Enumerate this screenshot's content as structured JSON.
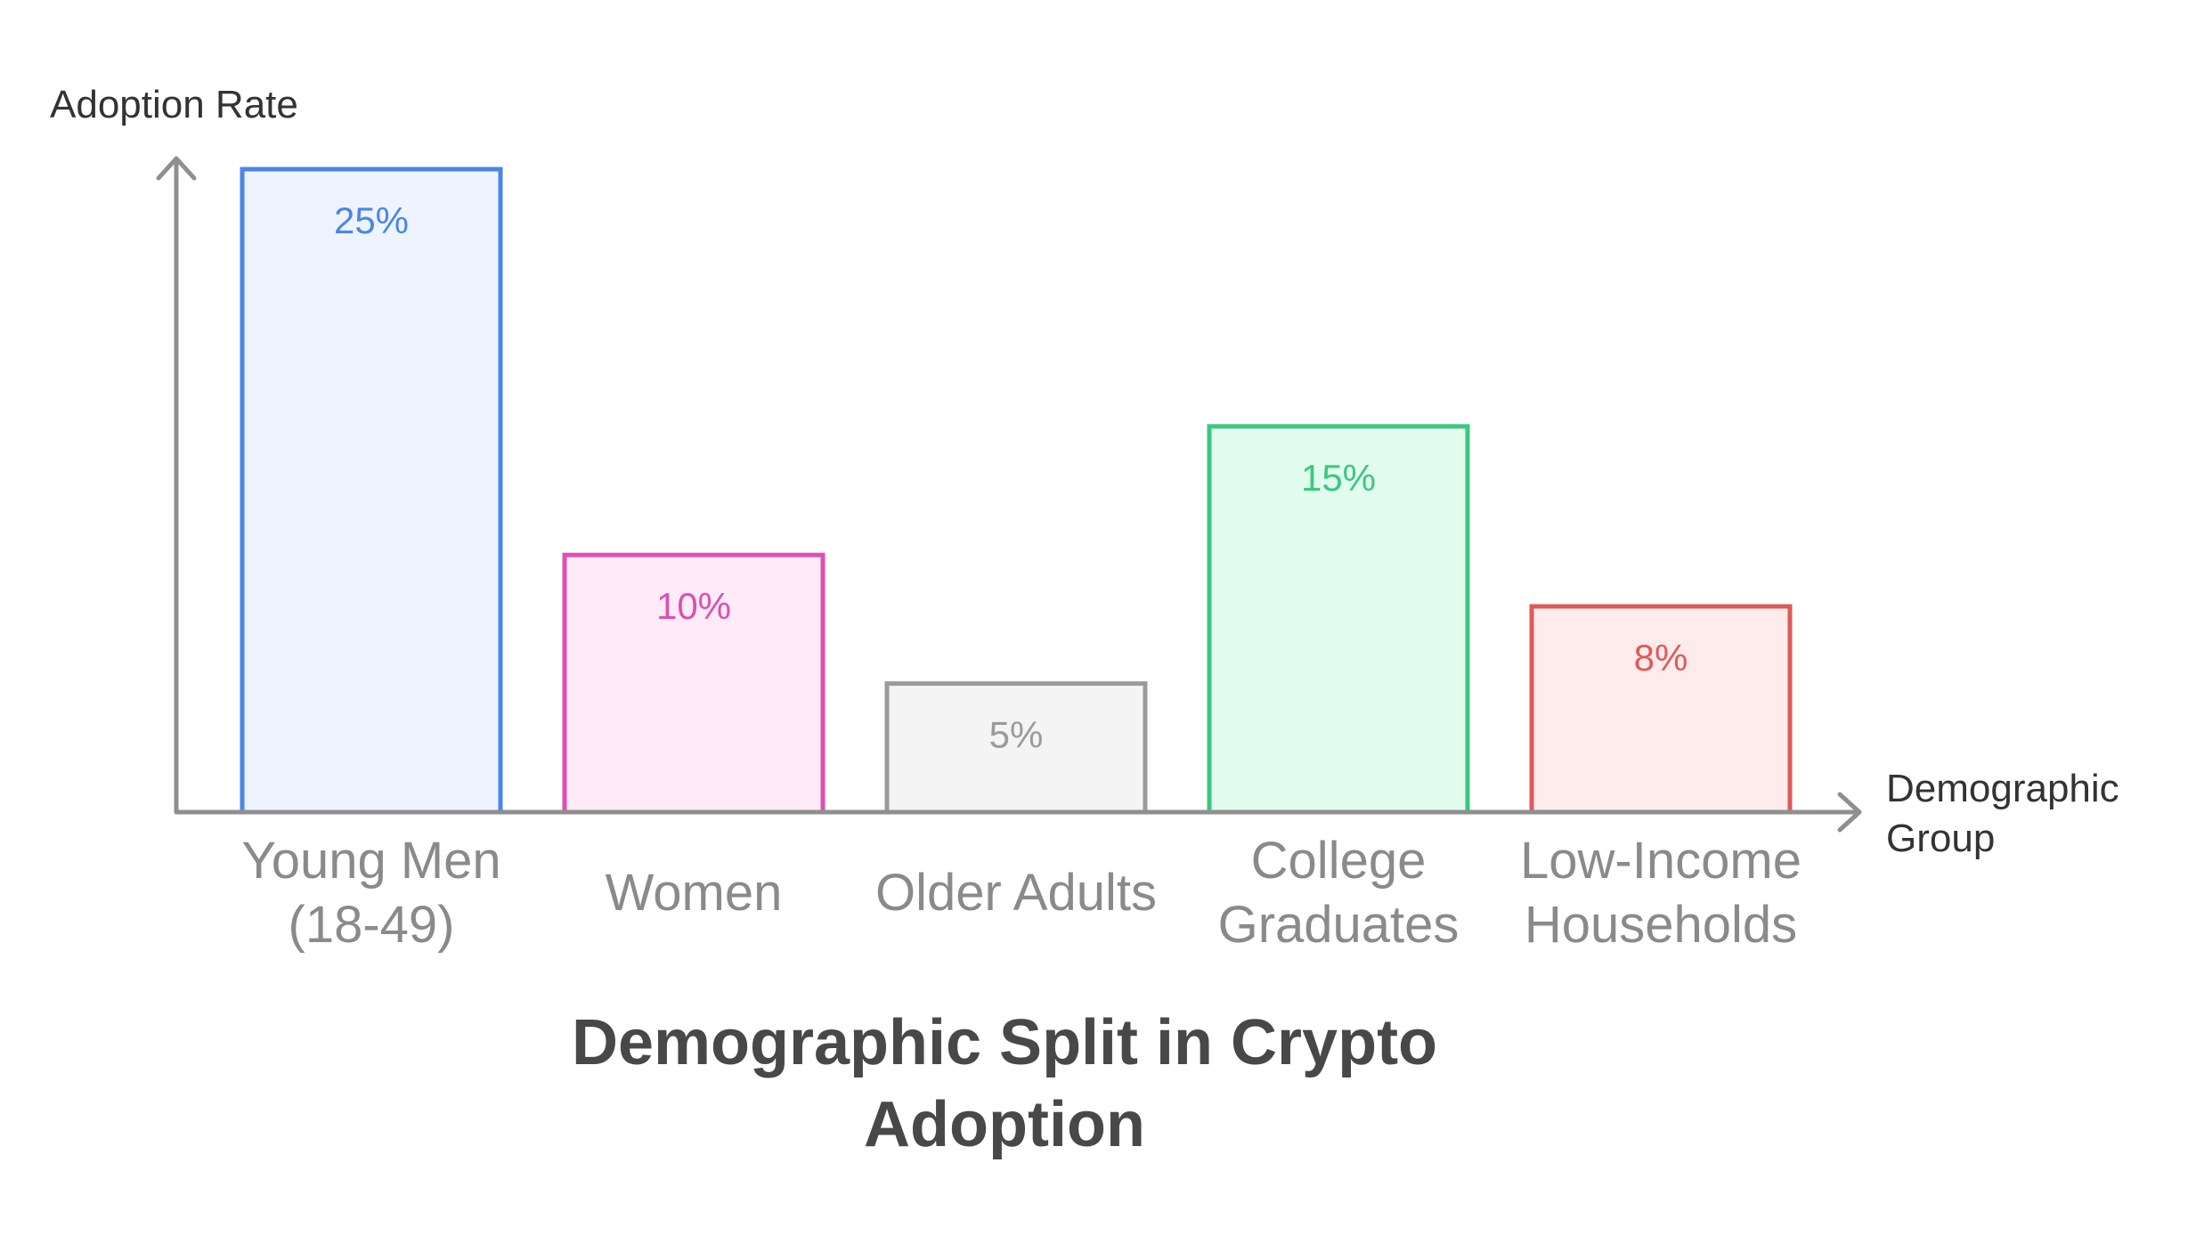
{
  "chart_data": {
    "type": "bar",
    "title": "Demographic Split in Crypto Adoption",
    "title_lines": [
      "Demographic Split in Crypto",
      "Adoption"
    ],
    "ylabel": "Adoption Rate",
    "xlabel_lines": [
      "Demographic",
      "Group"
    ],
    "grid": false,
    "ylim": [
      0,
      25
    ],
    "categories": [
      {
        "name": "Young Men (18-49)",
        "lines": [
          "Young Men",
          "(18-49)"
        ],
        "value": 25,
        "label": "25%",
        "stroke": "#4a86e8",
        "fill": "#eef4ff",
        "text": "#4a86e8"
      },
      {
        "name": "Women",
        "lines": [
          "Women"
        ],
        "value": 10,
        "label": "10%",
        "stroke": "#de4fb1",
        "fill": "#fdebf7",
        "text": "#de4fb1"
      },
      {
        "name": "Older Adults",
        "lines": [
          "Older Adults"
        ],
        "value": 5,
        "label": "5%",
        "stroke": "#9b9b9b",
        "fill": "#f4f4f4",
        "text": "#9b9b9b"
      },
      {
        "name": "College Graduates",
        "lines": [
          "College",
          "Graduates"
        ],
        "value": 15,
        "label": "15%",
        "stroke": "#3cc77f",
        "fill": "#e2fbef",
        "text": "#3cc77f"
      },
      {
        "name": "Low-Income Households",
        "lines": [
          "Low-Income",
          "Households"
        ],
        "value": 8,
        "label": "8%",
        "stroke": "#e05a5a",
        "fill": "#fdeceb",
        "text": "#e05a5a"
      }
    ]
  }
}
